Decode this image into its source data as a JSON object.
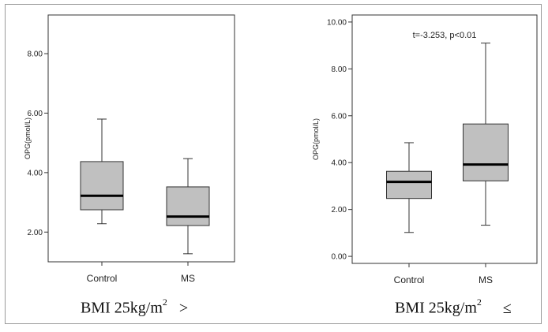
{
  "panels": [
    {
      "caption": {
        "text": "BMI  25kg/m",
        "sup": "2",
        "symbol": ">"
      },
      "chart_data": {
        "type": "boxplot",
        "title": "",
        "ylabel": "OPG(pmol/L)",
        "xlabel": "",
        "ylim": [
          1.0,
          9.3
        ],
        "yticks": [
          "2.00",
          "4.00",
          "6.00",
          "8.00"
        ],
        "grid": false,
        "categories": [
          "Control",
          "MS"
        ],
        "boxes": [
          {
            "category": "Control",
            "whisker_low": 2.28,
            "q1": 2.75,
            "median": 3.22,
            "q3": 4.37,
            "whisker_high": 5.8
          },
          {
            "category": "MS",
            "whisker_low": 1.27,
            "q1": 2.22,
            "median": 2.52,
            "q3": 3.52,
            "whisker_high": 4.47
          }
        ],
        "box_fill": "#c0c0c0",
        "annotation": ""
      }
    },
    {
      "caption": {
        "text": "BMI  25kg/m",
        "sup": "2",
        "symbol": "≤"
      },
      "chart_data": {
        "type": "boxplot",
        "title": "",
        "ylabel": "OPG(pmol/L)",
        "xlabel": "",
        "ylim": [
          -0.3,
          10.3
        ],
        "yticks": [
          "0.00",
          "2.00",
          "4.00",
          "6.00",
          "8.00",
          "10.00"
        ],
        "grid": false,
        "categories": [
          "Control",
          "MS"
        ],
        "boxes": [
          {
            "category": "Control",
            "whisker_low": 1.02,
            "q1": 2.47,
            "median": 3.18,
            "q3": 3.63,
            "whisker_high": 4.85
          },
          {
            "category": "MS",
            "whisker_low": 1.33,
            "q1": 3.22,
            "median": 3.92,
            "q3": 5.65,
            "whisker_high": 9.1
          }
        ],
        "box_fill": "#c0c0c0",
        "annotation": "t=-3.253, p<0.01"
      }
    }
  ]
}
